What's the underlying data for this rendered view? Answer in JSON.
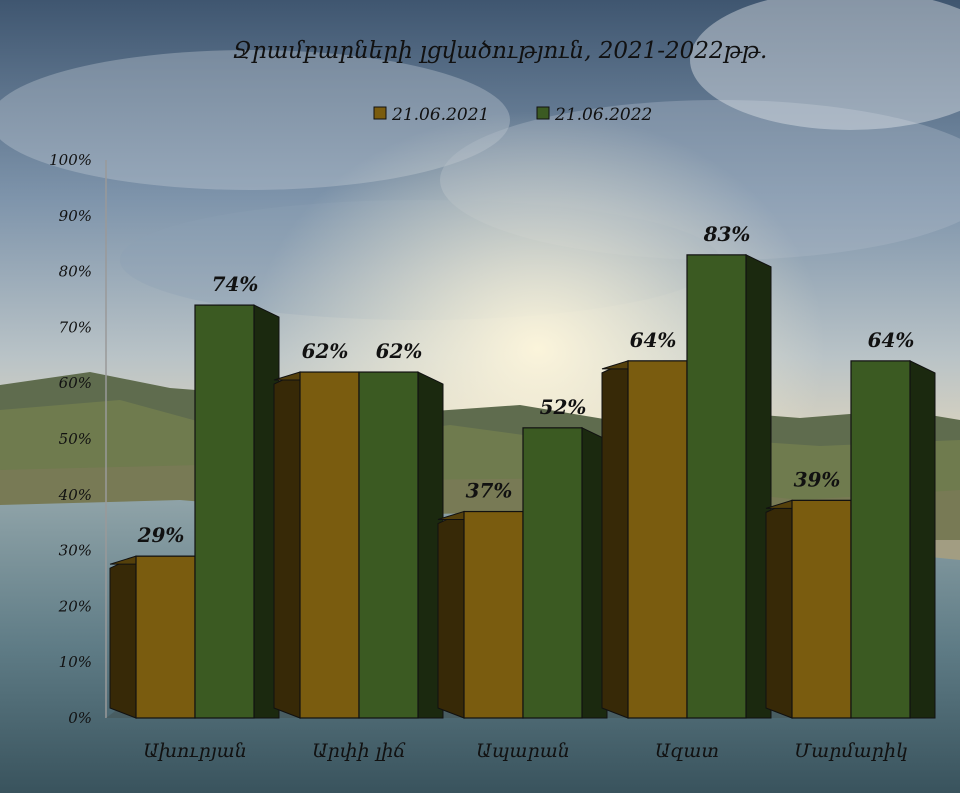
{
  "chart_data": {
    "type": "bar",
    "title": "Ջրամբարների լցվածություն,  2021-2022թթ.",
    "categories": [
      "Ախուրյան",
      "Արփի լիճ",
      "Ապարան",
      "Ազատ",
      "Մարմարիկ"
    ],
    "series": [
      {
        "name": "21.06.2021",
        "color": "#7a5c0f",
        "values": [
          29,
          62,
          37,
          64,
          39
        ],
        "labels": [
          "29%",
          "62%",
          "37%",
          "64%",
          "39%"
        ]
      },
      {
        "name": "21.06.2022",
        "color": "#3b5a22",
        "values": [
          74,
          62,
          52,
          83,
          64
        ],
        "labels": [
          "74%",
          "62%",
          "52%",
          "83%",
          "64%"
        ]
      }
    ],
    "yticks": [
      "0%",
      "10%",
      "20%",
      "30%",
      "40%",
      "50%",
      "60%",
      "70%",
      "80%",
      "90%",
      "100%"
    ],
    "ylim": [
      0,
      100
    ],
    "legend": "top-center",
    "grid": false
  }
}
